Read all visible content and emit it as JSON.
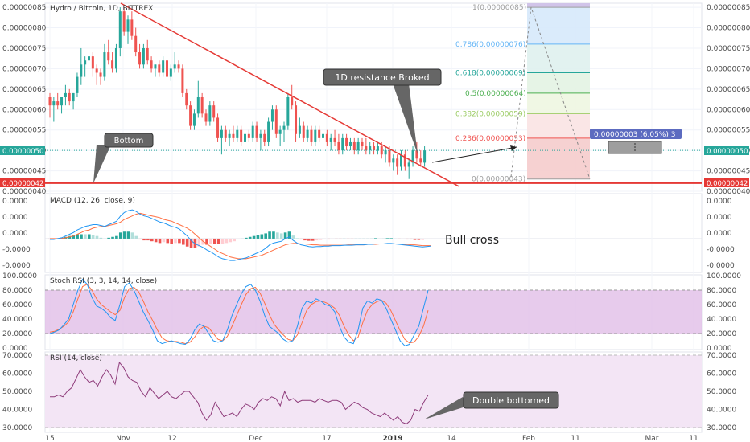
{
  "symbol_title": "Hydro / Bitcoin, 1D, BITTREX",
  "colors": {
    "up": "#26a69a",
    "down": "#ef5350",
    "trend": "#e53935",
    "support": "#e53935",
    "macd": "#2196f3",
    "signal": "#ff7043",
    "stoch_k": "#2196f3",
    "stoch_d": "#ff7043",
    "stoch_band": "#e1bee7",
    "rsi_line": "#8e3b7a",
    "rsi_band": "#f3e5f5",
    "callout_fill": "#666666",
    "callout_text": "#ffffff"
  },
  "x_axis": {
    "ticks": [
      "15",
      "Nov",
      "12",
      "Dec",
      "17",
      "2019",
      "14",
      "Feb",
      "11",
      "Mar",
      "11"
    ]
  },
  "main_panel": {
    "y_ticks": [
      "0.00000085",
      "0.00000080",
      "0.00000075",
      "0.00000070",
      "0.00000065",
      "0.00000060",
      "0.00000055",
      "0.00000050",
      "0.00000045",
      "0.00000040"
    ],
    "last_price_label": "0.00000050",
    "support_label": "0.00000042",
    "fib_levels": [
      {
        "label": "1(0.00000085)",
        "color": "#9e9e9e",
        "fill": "#e0e0e0"
      },
      {
        "label": "0.786(0.00000076)",
        "color": "#64b5f6",
        "fill": "#d6e9fb"
      },
      {
        "label": "0.618(0.00000069)",
        "color": "#26a69a",
        "fill": "#dff1ee"
      },
      {
        "label": "0.5(0.00000064)",
        "color": "#4caf50",
        "fill": "#e3f3e3"
      },
      {
        "label": "0.382(0.00000059)",
        "color": "#9ccc65",
        "fill": "#eef6e1"
      },
      {
        "label": "0.236(0.00000053)",
        "color": "#ef5350",
        "fill": "#f9e3e3"
      },
      {
        "label": "0(0.00000043)",
        "color": "#9e9e9e",
        "fill": "#f5cccc"
      }
    ],
    "measure_label": "0.00000003 (6.05%) 3",
    "callouts": {
      "bottom": "Bottom",
      "resistance": "1D resistance Broked"
    }
  },
  "macd_panel": {
    "title": "MACD (12, 26, close, 9)",
    "y_ticks": [
      "0.0000",
      "0.0000",
      "0.0000",
      "-0.0000",
      "-0.0000"
    ],
    "annotation": "Bull cross"
  },
  "stoch_panel": {
    "title": "Stoch RSI (3, 3, 14, 14, close)",
    "y_ticks": [
      "100.0000",
      "80.0000",
      "60.0000",
      "40.0000",
      "20.0000",
      "0.0000"
    ]
  },
  "rsi_panel": {
    "title": "RSI (14, close)",
    "y_ticks": [
      "70.0000",
      "60.0000",
      "50.0000",
      "40.0000",
      "30.0000"
    ],
    "callout": "Double bottomed"
  },
  "chart_data": {
    "type": "candlestick",
    "title": "Hydro / Bitcoin, 1D, BITTREX",
    "price_range": [
      4e-07,
      8.6e-07
    ],
    "candles": [
      [
        6.3e-07,
        6.4e-07,
        5.8e-07,
        6.1e-07
      ],
      [
        6.1e-07,
        6.3e-07,
        5.7e-07,
        6.2e-07
      ],
      [
        6.2e-07,
        6.4e-07,
        6e-07,
        6.1e-07
      ],
      [
        6.1e-07,
        6.3e-07,
        5.9e-07,
        6.3e-07
      ],
      [
        6.3e-07,
        6.6e-07,
        6.1e-07,
        6.4e-07
      ],
      [
        6.4e-07,
        6.5e-07,
        6.1e-07,
        6.2e-07
      ],
      [
        6.2e-07,
        6.4e-07,
        6e-07,
        6.4e-07
      ],
      [
        6.4e-07,
        6.9e-07,
        6.3e-07,
        6.8e-07
      ],
      [
        6.8e-07,
        7.5e-07,
        6.6e-07,
        7.1e-07
      ],
      [
        7.1e-07,
        7.3e-07,
        6.8e-07,
        7.2e-07
      ],
      [
        7.2e-07,
        7.6e-07,
        6.9e-07,
        7.3e-07
      ],
      [
        7.3e-07,
        7.4e-07,
        6.8e-07,
        7e-07
      ],
      [
        7e-07,
        7.1e-07,
        6.6e-07,
        6.9e-07
      ],
      [
        6.9e-07,
        7e-07,
        6.6e-07,
        6.8e-07
      ],
      [
        6.8e-07,
        7.6e-07,
        6.7e-07,
        7.4e-07
      ],
      [
        7.4e-07,
        7.7e-07,
        7.1e-07,
        7.2e-07
      ],
      [
        7.2e-07,
        7.4e-07,
        6.9e-07,
        7e-07
      ],
      [
        7e-07,
        7.6e-07,
        6.9e-07,
        7.5e-07
      ],
      [
        7.5e-07,
        8.5e-07,
        7.3e-07,
        8.4e-07
      ],
      [
        8.4e-07,
        8.5e-07,
        7.8e-07,
        7.9e-07
      ],
      [
        7.9e-07,
        8.3e-07,
        7.6e-07,
        8.2e-07
      ],
      [
        8.2e-07,
        8.4e-07,
        7.7e-07,
        7.8e-07
      ],
      [
        7.8e-07,
        8e-07,
        7.3e-07,
        7.4e-07
      ],
      [
        7.4e-07,
        7.6e-07,
        7e-07,
        7.1e-07
      ],
      [
        7.1e-07,
        7.6e-07,
        7e-07,
        7.5e-07
      ],
      [
        7.5e-07,
        7.7e-07,
        7.1e-07,
        7.2e-07
      ],
      [
        7.2e-07,
        7.3e-07,
        6.9e-07,
        7e-07
      ],
      [
        7e-07,
        7.1e-07,
        6.8e-07,
        7.1e-07
      ],
      [
        7.1e-07,
        7.2e-07,
        6.8e-07,
        6.9e-07
      ],
      [
        6.9e-07,
        7.3e-07,
        6.8e-07,
        7.2e-07
      ],
      [
        7.2e-07,
        7.3e-07,
        6.7e-07,
        6.8e-07
      ],
      [
        6.8e-07,
        7.1e-07,
        6.7e-07,
        7e-07
      ],
      [
        7e-07,
        7.4e-07,
        6.9e-07,
        7.1e-07
      ],
      [
        7.1e-07,
        7.2e-07,
        6.9e-07,
        7e-07
      ],
      [
        7e-07,
        7.1e-07,
        6.3e-07,
        6.4e-07
      ],
      [
        6.4e-07,
        6.5e-07,
        6e-07,
        6.1e-07
      ],
      [
        6.1e-07,
        6.2e-07,
        5.5e-07,
        5.6e-07
      ],
      [
        5.6e-07,
        6e-07,
        5.5e-07,
        5.9e-07
      ],
      [
        5.9e-07,
        6.7e-07,
        5.8e-07,
        6.3e-07
      ],
      [
        6.3e-07,
        6.4e-07,
        5.8e-07,
        5.9e-07
      ],
      [
        5.9e-07,
        6e-07,
        5.6e-07,
        5.7e-07
      ],
      [
        5.7e-07,
        6.2e-07,
        5.6e-07,
        6.1e-07
      ],
      [
        6.1e-07,
        6.2e-07,
        5.7e-07,
        5.8e-07
      ],
      [
        5.8e-07,
        5.9e-07,
        5.2e-07,
        5.3e-07
      ],
      [
        5.3e-07,
        5.6e-07,
        4.9e-07,
        5.5e-07
      ],
      [
        5.5e-07,
        5.6e-07,
        5.2e-07,
        5.3e-07
      ],
      [
        5.3e-07,
        5.5e-07,
        5.1e-07,
        5.4e-07
      ],
      [
        5.4e-07,
        5.6e-07,
        5.2e-07,
        5.3e-07
      ],
      [
        5.3e-07,
        5.6e-07,
        5.2e-07,
        5.5e-07
      ],
      [
        5.5e-07,
        5.6e-07,
        5.1e-07,
        5.2e-07
      ],
      [
        5.2e-07,
        5.5e-07,
        5.1e-07,
        5.4e-07
      ],
      [
        5.4e-07,
        5.5e-07,
        5.2e-07,
        5.3e-07
      ],
      [
        5.3e-07,
        5.7e-07,
        5.2e-07,
        5.6e-07
      ],
      [
        5.6e-07,
        5.7e-07,
        5.2e-07,
        5.3e-07
      ],
      [
        5.3e-07,
        5.5e-07,
        5e-07,
        5.4e-07
      ],
      [
        5.4e-07,
        5.5e-07,
        5.1e-07,
        5.2e-07
      ],
      [
        5.2e-07,
        5.8e-07,
        5.1e-07,
        5.7e-07
      ],
      [
        5.7e-07,
        6.1e-07,
        5.5e-07,
        6e-07
      ],
      [
        6e-07,
        6.1e-07,
        5.3e-07,
        5.4e-07
      ],
      [
        5.4e-07,
        5.6e-07,
        5.1e-07,
        5.5e-07
      ],
      [
        5.5e-07,
        5.7e-07,
        5.2e-07,
        5.6e-07
      ],
      [
        5.6e-07,
        6.4e-07,
        5.5e-07,
        6.3e-07
      ],
      [
        6.3e-07,
        6.6e-07,
        6e-07,
        6.1e-07
      ],
      [
        6.1e-07,
        6.2e-07,
        5.2e-07,
        5.4e-07
      ],
      [
        5.4e-07,
        5.8e-07,
        5.3e-07,
        5.6e-07
      ],
      [
        5.6e-07,
        5.7e-07,
        5.2e-07,
        5.3e-07
      ],
      [
        5.3e-07,
        5.6e-07,
        5.2e-07,
        5.5e-07
      ],
      [
        5.5e-07,
        5.6e-07,
        5.1e-07,
        5.2e-07
      ],
      [
        5.2e-07,
        5.6e-07,
        5.1e-07,
        5.5e-07
      ],
      [
        5.5e-07,
        5.6e-07,
        5.2e-07,
        5.3e-07
      ],
      [
        5.3e-07,
        5.5e-07,
        5.1e-07,
        5.4e-07
      ],
      [
        5.4e-07,
        5.5e-07,
        5.1e-07,
        5.2e-07
      ],
      [
        5.2e-07,
        5.4e-07,
        5e-07,
        5.3e-07
      ],
      [
        5.3e-07,
        5.5e-07,
        5.1e-07,
        5.2e-07
      ],
      [
        5.2e-07,
        5.4e-07,
        4.9e-07,
        5e-07
      ],
      [
        5e-07,
        5.4e-07,
        4.9e-07,
        5.3e-07
      ],
      [
        5.3e-07,
        5.4e-07,
        5e-07,
        5.1e-07
      ],
      [
        5.1e-07,
        5.3e-07,
        5e-07,
        5.2e-07
      ],
      [
        5.2e-07,
        5.3e-07,
        4.9e-07,
        5e-07
      ],
      [
        5e-07,
        5.3e-07,
        4.9e-07,
        5.2e-07
      ],
      [
        5.2e-07,
        5.3e-07,
        5e-07,
        5.1e-07
      ],
      [
        5.1e-07,
        5.3e-07,
        4.9e-07,
        5e-07
      ],
      [
        5e-07,
        5.2e-07,
        4.9e-07,
        5.1e-07
      ],
      [
        5.1e-07,
        5.2e-07,
        4.9e-07,
        5e-07
      ],
      [
        5e-07,
        5.2e-07,
        4.9e-07,
        5.1e-07
      ],
      [
        5.1e-07,
        5.2e-07,
        4.8e-07,
        4.9e-07
      ],
      [
        4.9e-07,
        5.1e-07,
        4.7e-07,
        5e-07
      ],
      [
        5e-07,
        5.1e-07,
        4.6e-07,
        4.7e-07
      ],
      [
        4.7e-07,
        4.9e-07,
        4.5e-07,
        4.8e-07
      ],
      [
        4.8e-07,
        4.9e-07,
        4.4e-07,
        4.6e-07
      ],
      [
        4.6e-07,
        5e-07,
        4.5e-07,
        4.9e-07
      ],
      [
        4.9e-07,
        5e-07,
        4.5e-07,
        4.6e-07
      ],
      [
        4.6e-07,
        4.8e-07,
        4.3e-07,
        4.7e-07
      ],
      [
        4.7e-07,
        5.1e-07,
        4.6e-07,
        5e-07
      ],
      [
        5e-07,
        5.2e-07,
        4.7e-07,
        4.8e-07
      ],
      [
        4.8e-07,
        5e-07,
        4.6e-07,
        4.7e-07
      ],
      [
        4.7e-07,
        5.1e-07,
        4.6e-07,
        5e-07
      ]
    ],
    "trendline": [
      [
        8.6e-07,
        0
      ],
      [
        4.4e-07,
        1
      ]
    ],
    "support_level": 4.2e-07,
    "macd": {
      "range": [
        -3.5e-09,
        4.5e-09
      ],
      "macd_line": [
        -0.1,
        -0.1,
        0.0,
        0.1,
        0.3,
        0.5,
        0.7,
        1.0,
        1.2,
        1.4,
        1.5,
        1.6,
        1.6,
        1.5,
        1.4,
        1.6,
        1.8,
        2.0,
        2.6,
        3.0,
        3.2,
        3.3,
        3.1,
        2.8,
        2.6,
        2.5,
        2.3,
        2.1,
        1.9,
        1.8,
        1.6,
        1.4,
        1.3,
        1.1,
        0.7,
        0.3,
        -0.2,
        -0.6,
        -0.8,
        -1.0,
        -1.3,
        -1.5,
        -1.8,
        -2.1,
        -2.3,
        -2.4,
        -2.5,
        -2.5,
        -2.4,
        -2.3,
        -2.2,
        -2.0,
        -1.8,
        -1.6,
        -1.4,
        -1.1,
        -0.7,
        -0.5,
        -0.4,
        -0.3,
        0.0,
        0.2,
        -0.2,
        -0.5,
        -0.7,
        -0.8,
        -0.9,
        -0.95,
        -0.9,
        -0.9,
        -0.85,
        -0.85,
        -0.8,
        -0.8,
        -0.8,
        -0.75,
        -0.75,
        -0.75,
        -0.7,
        -0.7,
        -0.7,
        -0.65,
        -0.65,
        -0.6,
        -0.6,
        -0.6,
        -0.55,
        -0.55,
        -0.6,
        -0.65,
        -0.7,
        -0.75,
        -0.8,
        -0.85,
        -0.9,
        -0.95,
        -0.9,
        -0.85
      ],
      "signal_line": [
        0.0,
        0.0,
        0.0,
        0.0,
        0.1,
        0.2,
        0.3,
        0.5,
        0.7,
        0.9,
        1.0,
        1.2,
        1.3,
        1.4,
        1.4,
        1.5,
        1.6,
        1.7,
        1.9,
        2.2,
        2.4,
        2.6,
        2.8,
        2.9,
        2.8,
        2.7,
        2.6,
        2.5,
        2.4,
        2.2,
        2.1,
        2.0,
        1.8,
        1.6,
        1.4,
        1.2,
        0.9,
        0.5,
        0.1,
        -0.3,
        -0.6,
        -0.9,
        -1.2,
        -1.5,
        -1.7,
        -1.9,
        -2.1,
        -2.2,
        -2.3,
        -2.3,
        -2.3,
        -2.2,
        -2.1,
        -2.0,
        -1.9,
        -1.7,
        -1.5,
        -1.3,
        -1.1,
        -0.9,
        -0.7,
        -0.6,
        -0.55,
        -0.55,
        -0.6,
        -0.6,
        -0.65,
        -0.7,
        -0.7,
        -0.75,
        -0.75,
        -0.75,
        -0.75,
        -0.75,
        -0.75,
        -0.75,
        -0.7,
        -0.7,
        -0.7,
        -0.7,
        -0.7,
        -0.65,
        -0.65,
        -0.65,
        -0.6,
        -0.6,
        -0.6,
        -0.6,
        -0.6,
        -0.6,
        -0.65,
        -0.65,
        -0.7,
        -0.7,
        -0.75,
        -0.8,
        -0.8,
        -0.8
      ]
    },
    "stoch_rsi": {
      "range": [
        0,
        100
      ],
      "k": [
        20,
        22,
        25,
        32,
        40,
        60,
        80,
        95,
        88,
        70,
        58,
        55,
        50,
        42,
        38,
        60,
        85,
        90,
        80,
        65,
        50,
        38,
        25,
        10,
        6,
        8,
        10,
        8,
        6,
        5,
        12,
        25,
        33,
        30,
        20,
        10,
        8,
        10,
        25,
        45,
        60,
        75,
        85,
        88,
        80,
        65,
        45,
        30,
        25,
        20,
        12,
        8,
        10,
        30,
        55,
        65,
        62,
        68,
        65,
        60,
        58,
        50,
        30,
        15,
        8,
        6,
        25,
        55,
        65,
        62,
        68,
        66,
        55,
        40,
        25,
        10,
        3,
        5,
        18,
        30,
        55,
        80
      ],
      "d": [
        22,
        23,
        26,
        30,
        36,
        50,
        68,
        85,
        88,
        80,
        68,
        60,
        55,
        50,
        46,
        52,
        70,
        82,
        84,
        78,
        65,
        50,
        38,
        25,
        14,
        10,
        9,
        9,
        8,
        6,
        8,
        15,
        25,
        30,
        28,
        20,
        12,
        10,
        16,
        30,
        45,
        60,
        74,
        82,
        84,
        76,
        62,
        46,
        33,
        25,
        18,
        12,
        10,
        18,
        35,
        52,
        60,
        64,
        65,
        63,
        60,
        55,
        45,
        30,
        18,
        10,
        15,
        35,
        52,
        60,
        64,
        66,
        62,
        52,
        38,
        24,
        12,
        7,
        8,
        16,
        30,
        52
      ]
    },
    "rsi": {
      "range": [
        30,
        70
      ],
      "values": [
        47,
        47,
        48,
        47,
        50,
        52,
        57,
        62,
        58,
        55,
        56,
        53,
        58,
        62,
        59,
        54,
        66,
        63,
        58,
        56,
        55,
        50,
        47,
        52,
        49,
        46,
        48,
        50,
        47,
        46,
        48,
        50,
        50,
        47,
        44,
        38,
        34,
        37,
        44,
        40,
        36,
        37,
        38,
        36,
        40,
        43,
        42,
        40,
        44,
        46,
        45,
        47,
        46,
        42,
        50,
        45,
        46,
        44,
        45,
        45,
        45,
        44,
        46,
        45,
        44,
        45,
        45,
        44,
        40,
        42,
        44,
        43,
        41,
        40,
        38,
        37,
        36,
        38,
        36,
        34,
        36,
        33,
        32,
        34,
        40,
        39,
        44,
        48
      ]
    }
  }
}
